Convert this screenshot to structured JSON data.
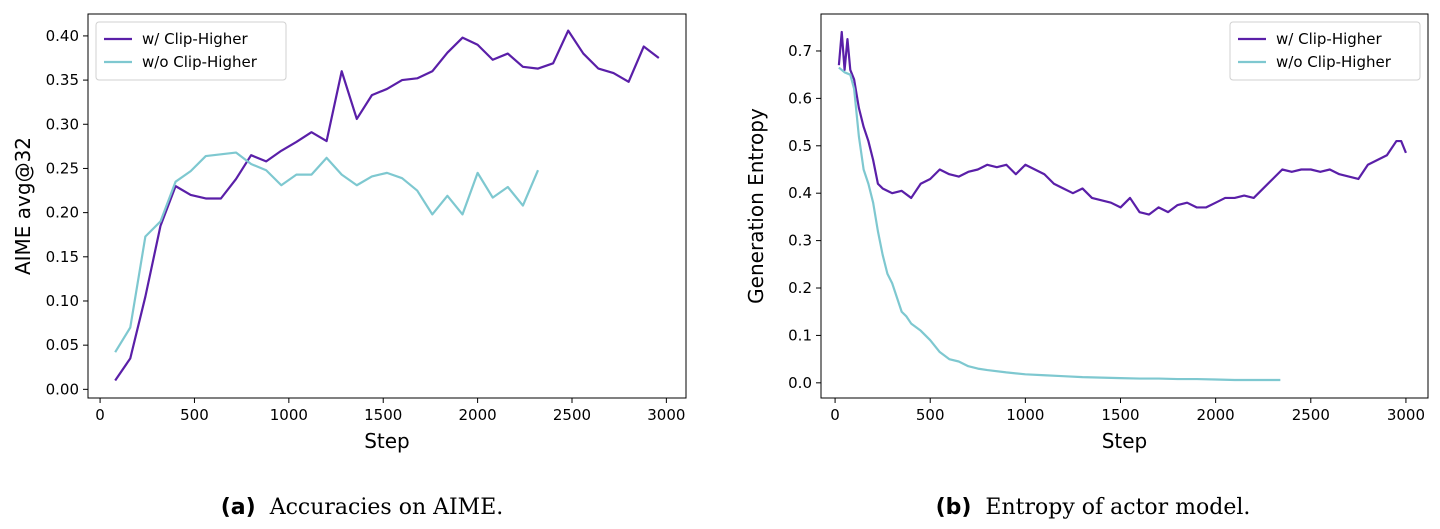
{
  "chart_data": [
    {
      "type": "line",
      "xlabel": "Step",
      "ylabel": "AIME avg@32",
      "xlim": [
        -64,
        3104
      ],
      "ylim": [
        -0.0098,
        0.4248
      ],
      "xticks": [
        0,
        500,
        1000,
        1500,
        2000,
        2500,
        3000
      ],
      "yticks": [
        {
          "value": 0,
          "label": "0.00"
        },
        0.05,
        {
          "value": 0.1,
          "label": "0.10"
        },
        0.15,
        {
          "value": 0.2,
          "label": "0.20"
        },
        0.25,
        {
          "value": 0.3,
          "label": "0.30"
        },
        0.35,
        {
          "value": 0.4,
          "label": "0.40"
        }
      ],
      "legend": "upper left",
      "series": [
        {
          "name": "w/ Clip-Higher",
          "color": "#5a1fa8",
          "x": [
            80,
            160,
            240,
            320,
            400,
            480,
            560,
            640,
            720,
            800,
            880,
            960,
            1040,
            1120,
            1200,
            1280,
            1360,
            1440,
            1520,
            1600,
            1680,
            1760,
            1840,
            1920,
            2000,
            2080,
            2160,
            2240,
            2320,
            2400,
            2480,
            2560,
            2640,
            2720,
            2800,
            2880,
            2960
          ],
          "values": [
            0.01,
            0.035,
            0.105,
            0.185,
            0.23,
            0.22,
            0.216,
            0.216,
            0.238,
            0.265,
            0.258,
            0.27,
            0.28,
            0.291,
            0.281,
            0.36,
            0.306,
            0.333,
            0.34,
            0.35,
            0.352,
            0.36,
            0.381,
            0.398,
            0.39,
            0.373,
            0.38,
            0.365,
            0.363,
            0.369,
            0.406,
            0.38,
            0.363,
            0.358,
            0.348,
            0.388,
            0.375
          ]
        },
        {
          "name": "w/o Clip-Higher",
          "color": "#7ec8d0",
          "x": [
            80,
            160,
            240,
            320,
            400,
            480,
            560,
            640,
            720,
            800,
            880,
            960,
            1040,
            1120,
            1200,
            1280,
            1360,
            1440,
            1520,
            1600,
            1680,
            1760,
            1840,
            1920,
            2000,
            2080,
            2160,
            2240,
            2320
          ],
          "values": [
            0.042,
            0.07,
            0.173,
            0.19,
            0.235,
            0.247,
            0.264,
            0.266,
            0.268,
            0.255,
            0.248,
            0.231,
            0.243,
            0.243,
            0.262,
            0.243,
            0.231,
            0.241,
            0.245,
            0.239,
            0.225,
            0.198,
            0.219,
            0.198,
            0.245,
            0.217,
            0.229,
            0.208,
            0.248
          ]
        }
      ],
      "caption": {
        "label": "(a)",
        "text": "Accuracies on AIME."
      }
    },
    {
      "type": "line",
      "xlabel": "Step",
      "ylabel": "Generation Entropy",
      "xlim": [
        -74,
        3116
      ],
      "ylim": [
        -0.032,
        0.778
      ],
      "xticks": [
        0,
        500,
        1000,
        1500,
        2000,
        2500,
        3000
      ],
      "yticks": [
        {
          "value": 0,
          "label": "0.0"
        },
        0.1,
        0.2,
        0.3,
        0.4,
        0.5,
        0.6,
        0.7
      ],
      "legend": "upper right",
      "series": [
        {
          "name": "w/ Clip-Higher",
          "color": "#5a1fa8",
          "x": [
            20,
            35,
            50,
            65,
            80,
            100,
            125,
            150,
            175,
            200,
            225,
            250,
            300,
            350,
            400,
            450,
            500,
            550,
            600,
            650,
            700,
            750,
            800,
            850,
            900,
            950,
            1000,
            1050,
            1100,
            1150,
            1200,
            1250,
            1300,
            1350,
            1400,
            1450,
            1500,
            1550,
            1600,
            1650,
            1700,
            1750,
            1800,
            1850,
            1900,
            1950,
            2000,
            2050,
            2100,
            2150,
            2200,
            2250,
            2300,
            2350,
            2400,
            2450,
            2500,
            2550,
            2600,
            2650,
            2700,
            2750,
            2800,
            2850,
            2900,
            2950,
            2975,
            3000
          ],
          "values": [
            0.67,
            0.74,
            0.66,
            0.725,
            0.66,
            0.64,
            0.58,
            0.54,
            0.51,
            0.47,
            0.42,
            0.41,
            0.4,
            0.405,
            0.39,
            0.42,
            0.43,
            0.45,
            0.44,
            0.435,
            0.445,
            0.45,
            0.46,
            0.455,
            0.46,
            0.44,
            0.46,
            0.45,
            0.44,
            0.42,
            0.41,
            0.4,
            0.41,
            0.39,
            0.385,
            0.38,
            0.37,
            0.39,
            0.36,
            0.355,
            0.37,
            0.36,
            0.375,
            0.38,
            0.37,
            0.37,
            0.38,
            0.39,
            0.39,
            0.395,
            0.39,
            0.41,
            0.43,
            0.45,
            0.445,
            0.45,
            0.45,
            0.445,
            0.45,
            0.44,
            0.435,
            0.43,
            0.46,
            0.47,
            0.48,
            0.51,
            0.51,
            0.485
          ]
        },
        {
          "name": "w/o Clip-Higher",
          "color": "#7ec8d0",
          "x": [
            20,
            50,
            80,
            100,
            125,
            150,
            175,
            200,
            225,
            250,
            275,
            300,
            325,
            350,
            375,
            400,
            450,
            500,
            550,
            600,
            650,
            700,
            750,
            800,
            900,
            1000,
            1100,
            1200,
            1300,
            1400,
            1500,
            1600,
            1700,
            1800,
            1900,
            2000,
            2100,
            2200,
            2340
          ],
          "values": [
            0.665,
            0.655,
            0.65,
            0.62,
            0.52,
            0.45,
            0.42,
            0.38,
            0.32,
            0.27,
            0.23,
            0.21,
            0.18,
            0.15,
            0.14,
            0.125,
            0.11,
            0.09,
            0.065,
            0.05,
            0.045,
            0.035,
            0.03,
            0.027,
            0.022,
            0.018,
            0.016,
            0.014,
            0.012,
            0.011,
            0.01,
            0.009,
            0.009,
            0.008,
            0.008,
            0.007,
            0.006,
            0.006,
            0.006
          ]
        }
      ],
      "caption": {
        "label": "(b)",
        "text": "Entropy of actor model."
      }
    }
  ]
}
